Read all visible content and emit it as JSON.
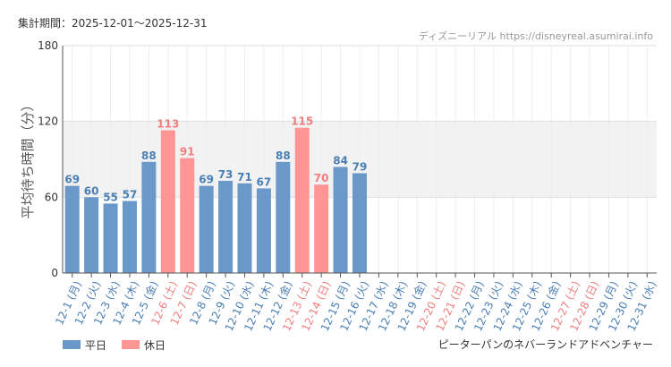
{
  "header": {
    "period": "集計期間：2025-12-01〜2025-12-31",
    "source": "ディズニーリアル https://disneyreal.asumirai.info"
  },
  "attraction": "ピーターパンのネバーランドアドベンチャー",
  "colors": {
    "weekday": "#6a98c8",
    "holiday": "#ff9595",
    "weekday_text": "#4a7fb5",
    "holiday_text": "#ef7f7f",
    "band": "#f2f2f2",
    "grid": "#dddddd"
  },
  "chart_data": {
    "type": "bar",
    "title": "",
    "xlabel": "",
    "ylabel": "平均待ち時間（分）",
    "ylim": [
      0,
      180
    ],
    "yticks": [
      0,
      60,
      120,
      180
    ],
    "shaded_band": [
      60,
      120
    ],
    "grid": true,
    "legend_position": "bottom-left",
    "legend": [
      {
        "key": "weekday",
        "label": "平日"
      },
      {
        "key": "holiday",
        "label": "休日"
      }
    ],
    "categories": [
      "12-1 (月)",
      "12-2 (火)",
      "12-3 (水)",
      "12-4 (木)",
      "12-5 (金)",
      "12-6 (土)",
      "12-7 (日)",
      "12-8 (月)",
      "12-9 (火)",
      "12-10 (水)",
      "12-11 (木)",
      "12-12 (金)",
      "12-13 (土)",
      "12-14 (日)",
      "12-15 (月)",
      "12-16 (火)",
      "12-17 (水)",
      "12-18 (木)",
      "12-19 (金)",
      "12-20 (土)",
      "12-21 (日)",
      "12-22 (月)",
      "12-23 (火)",
      "12-24 (水)",
      "12-25 (木)",
      "12-26 (金)",
      "12-27 (土)",
      "12-28 (日)",
      "12-29 (月)",
      "12-30 (火)",
      "12-31 (水)"
    ],
    "day_type": [
      "weekday",
      "weekday",
      "weekday",
      "weekday",
      "weekday",
      "holiday",
      "holiday",
      "weekday",
      "weekday",
      "weekday",
      "weekday",
      "weekday",
      "holiday",
      "holiday",
      "weekday",
      "weekday",
      "weekday",
      "weekday",
      "weekday",
      "holiday",
      "holiday",
      "weekday",
      "weekday",
      "weekday",
      "weekday",
      "weekday",
      "holiday",
      "holiday",
      "weekday",
      "weekday",
      "weekday"
    ],
    "values": [
      69,
      60,
      55,
      57,
      88,
      113,
      91,
      69,
      73,
      71,
      67,
      88,
      115,
      70,
      84,
      79,
      null,
      null,
      null,
      null,
      null,
      null,
      null,
      null,
      null,
      null,
      null,
      null,
      null,
      null,
      null
    ]
  }
}
